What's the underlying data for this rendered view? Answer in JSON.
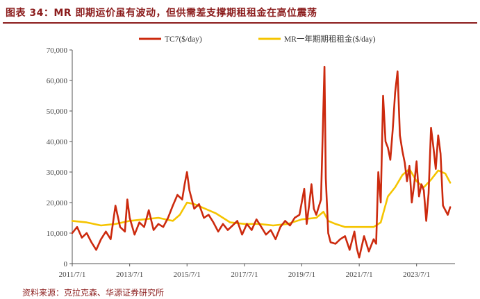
{
  "title": "图表 34：MR 即期运价虽有波动，但供需差支撑期租租金在高位震荡",
  "source": "资料来源：克拉克森、华源证券研究所",
  "chart_data": {
    "type": "line",
    "xlim": [
      "2011-07-01",
      "2024-11-01"
    ],
    "ylim": [
      0,
      70000
    ],
    "yticks": [
      0,
      10000,
      20000,
      30000,
      40000,
      50000,
      60000,
      70000
    ],
    "ytick_labels": [
      "0",
      "10,000",
      "20,000",
      "30,000",
      "40,000",
      "50,000",
      "60,000",
      "70,000"
    ],
    "xtick_labels": [
      "2011/7/1",
      "2013/7/1",
      "2015/7/1",
      "2017/7/1",
      "2019/7/1",
      "2021/7/1",
      "2023/7/1"
    ],
    "grid": false,
    "legend_position": "top",
    "series": [
      {
        "name": "TC7($/day)",
        "color": "#cc2a0e",
        "points": [
          [
            "2011-07-01",
            10000
          ],
          [
            "2011-09-01",
            12000
          ],
          [
            "2011-11-01",
            8500
          ],
          [
            "2012-01-01",
            10000
          ],
          [
            "2012-03-01",
            7000
          ],
          [
            "2012-05-01",
            4500
          ],
          [
            "2012-07-01",
            8000
          ],
          [
            "2012-09-01",
            10500
          ],
          [
            "2012-11-01",
            8000
          ],
          [
            "2013-01-01",
            19000
          ],
          [
            "2013-03-01",
            12000
          ],
          [
            "2013-05-01",
            10500
          ],
          [
            "2013-06-01",
            21000
          ],
          [
            "2013-07-01",
            15000
          ],
          [
            "2013-09-01",
            9500
          ],
          [
            "2013-11-01",
            13500
          ],
          [
            "2014-01-01",
            12000
          ],
          [
            "2014-03-01",
            17500
          ],
          [
            "2014-05-01",
            11000
          ],
          [
            "2014-07-01",
            13000
          ],
          [
            "2014-09-01",
            12000
          ],
          [
            "2014-11-01",
            15000
          ],
          [
            "2015-01-01",
            19000
          ],
          [
            "2015-03-01",
            22500
          ],
          [
            "2015-05-01",
            21000
          ],
          [
            "2015-06-01",
            26000
          ],
          [
            "2015-07-01",
            30000
          ],
          [
            "2015-08-01",
            24000
          ],
          [
            "2015-10-01",
            18000
          ],
          [
            "2015-12-01",
            19500
          ],
          [
            "2016-02-01",
            15000
          ],
          [
            "2016-04-01",
            16000
          ],
          [
            "2016-06-01",
            13500
          ],
          [
            "2016-08-01",
            10500
          ],
          [
            "2016-10-01",
            13000
          ],
          [
            "2016-12-01",
            11000
          ],
          [
            "2017-02-01",
            12500
          ],
          [
            "2017-04-01",
            14000
          ],
          [
            "2017-06-01",
            9500
          ],
          [
            "2017-08-01",
            13000
          ],
          [
            "2017-10-01",
            11000
          ],
          [
            "2017-12-01",
            14500
          ],
          [
            "2018-02-01",
            12000
          ],
          [
            "2018-04-01",
            9500
          ],
          [
            "2018-06-01",
            11000
          ],
          [
            "2018-08-01",
            8000
          ],
          [
            "2018-10-01",
            12000
          ],
          [
            "2018-12-01",
            14000
          ],
          [
            "2019-02-01",
            12500
          ],
          [
            "2019-04-01",
            15000
          ],
          [
            "2019-06-01",
            16000
          ],
          [
            "2019-08-01",
            24500
          ],
          [
            "2019-09-01",
            13000
          ],
          [
            "2019-10-01",
            19000
          ],
          [
            "2019-11-01",
            26000
          ],
          [
            "2019-12-01",
            18000
          ],
          [
            "2020-01-01",
            16000
          ],
          [
            "2020-03-01",
            21000
          ],
          [
            "2020-04-15",
            64500
          ],
          [
            "2020-05-01",
            28000
          ],
          [
            "2020-06-01",
            10000
          ],
          [
            "2020-07-01",
            7000
          ],
          [
            "2020-09-01",
            6500
          ],
          [
            "2020-11-01",
            8000
          ],
          [
            "2021-01-01",
            9000
          ],
          [
            "2021-03-01",
            4500
          ],
          [
            "2021-05-01",
            10500
          ],
          [
            "2021-06-01",
            5000
          ],
          [
            "2021-07-01",
            2000
          ],
          [
            "2021-09-01",
            9000
          ],
          [
            "2021-11-01",
            4000
          ],
          [
            "2022-01-01",
            8000
          ],
          [
            "2022-02-01",
            6500
          ],
          [
            "2022-03-01",
            30000
          ],
          [
            "2022-04-01",
            20000
          ],
          [
            "2022-05-01",
            55000
          ],
          [
            "2022-06-01",
            40000
          ],
          [
            "2022-07-01",
            38000
          ],
          [
            "2022-08-01",
            34000
          ],
          [
            "2022-09-01",
            44000
          ],
          [
            "2022-10-01",
            56000
          ],
          [
            "2022-11-01",
            63000
          ],
          [
            "2022-12-01",
            42000
          ],
          [
            "2023-01-01",
            37000
          ],
          [
            "2023-02-01",
            33000
          ],
          [
            "2023-03-01",
            27000
          ],
          [
            "2023-04-01",
            32000
          ],
          [
            "2023-05-01",
            20000
          ],
          [
            "2023-06-01",
            26000
          ],
          [
            "2023-07-01",
            33500
          ],
          [
            "2023-08-01",
            22000
          ],
          [
            "2023-09-01",
            26000
          ],
          [
            "2023-10-01",
            24000
          ],
          [
            "2023-11-01",
            14000
          ],
          [
            "2023-12-01",
            23000
          ],
          [
            "2024-01-01",
            44500
          ],
          [
            "2024-02-01",
            38000
          ],
          [
            "2024-03-01",
            31000
          ],
          [
            "2024-04-01",
            42000
          ],
          [
            "2024-05-01",
            36000
          ],
          [
            "2024-06-01",
            19000
          ],
          [
            "2024-07-01",
            17500
          ],
          [
            "2024-08-01",
            16000
          ],
          [
            "2024-09-01",
            18500
          ]
        ]
      },
      {
        "name": "MR一年期期租租金($/day)",
        "color": "#f5c400",
        "points": [
          [
            "2011-07-01",
            14000
          ],
          [
            "2012-01-01",
            13500
          ],
          [
            "2012-07-01",
            12500
          ],
          [
            "2013-01-01",
            13000
          ],
          [
            "2013-07-01",
            14000
          ],
          [
            "2014-01-01",
            14500
          ],
          [
            "2014-07-01",
            15000
          ],
          [
            "2015-01-01",
            14000
          ],
          [
            "2015-04-01",
            16000
          ],
          [
            "2015-07-01",
            20000
          ],
          [
            "2015-10-01",
            19500
          ],
          [
            "2016-01-01",
            18500
          ],
          [
            "2016-07-01",
            16500
          ],
          [
            "2017-01-01",
            13500
          ],
          [
            "2017-07-01",
            13000
          ],
          [
            "2018-01-01",
            13000
          ],
          [
            "2018-07-01",
            12500
          ],
          [
            "2019-01-01",
            13000
          ],
          [
            "2019-07-01",
            14500
          ],
          [
            "2020-01-01",
            15000
          ],
          [
            "2020-04-01",
            17000
          ],
          [
            "2020-06-01",
            14000
          ],
          [
            "2020-09-01",
            13000
          ],
          [
            "2021-01-01",
            12000
          ],
          [
            "2021-07-01",
            12000
          ],
          [
            "2022-01-01",
            12000
          ],
          [
            "2022-04-01",
            13500
          ],
          [
            "2022-07-01",
            22000
          ],
          [
            "2022-10-01",
            25000
          ],
          [
            "2023-01-01",
            29000
          ],
          [
            "2023-04-01",
            31000
          ],
          [
            "2023-07-01",
            27000
          ],
          [
            "2023-10-01",
            25000
          ],
          [
            "2024-01-01",
            27500
          ],
          [
            "2024-04-01",
            30500
          ],
          [
            "2024-07-01",
            29500
          ],
          [
            "2024-09-01",
            26500
          ]
        ]
      }
    ]
  }
}
